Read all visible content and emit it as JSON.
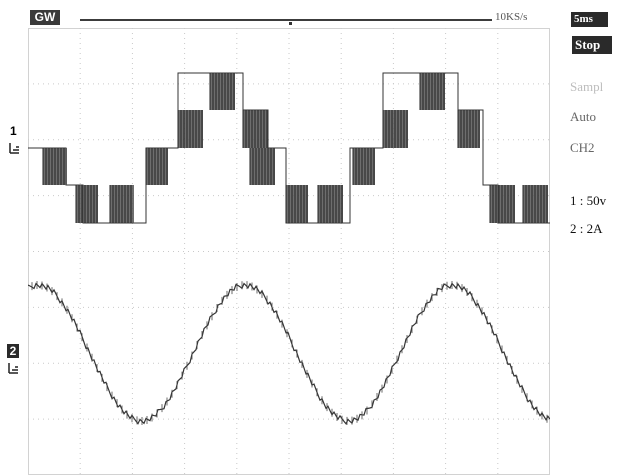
{
  "header": {
    "brand": "GW",
    "sample_rate": "10KS/s",
    "timebase": "5ms"
  },
  "side_menu": {
    "run_state": "Stop",
    "acquire_mode": "Sampl",
    "trigger_mode": "Auto",
    "trigger_source": "CH2",
    "ch1_scale": "1 : 50v",
    "ch2_scale": "2 : 2A"
  },
  "channels": {
    "ch1_marker": "1",
    "ch2_marker": "2"
  },
  "colors": {
    "background": "#ffffff",
    "grid": "#c9c9c9",
    "trace": "#333333",
    "dark_label": "#2a2a2a"
  }
}
